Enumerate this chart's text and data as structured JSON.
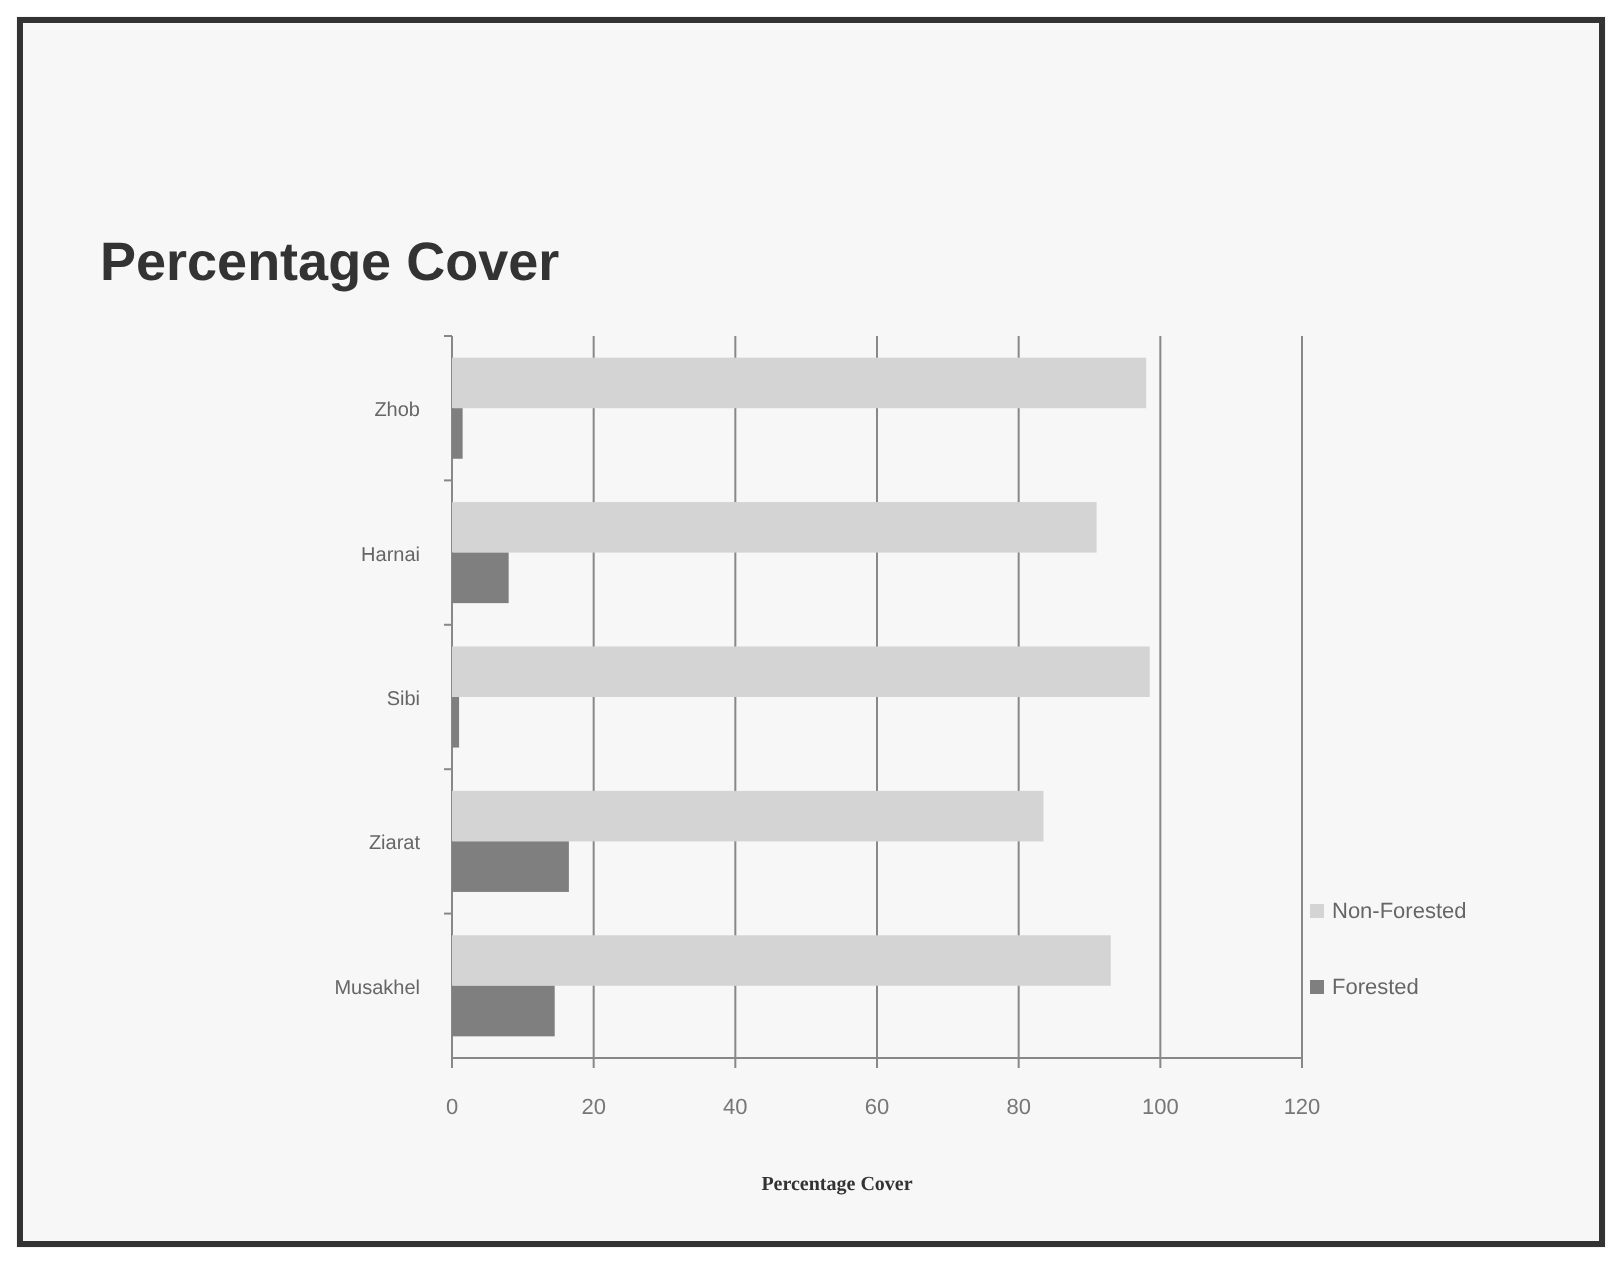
{
  "chart_data": {
    "type": "bar",
    "orientation": "horizontal",
    "title": "Percentage Cover",
    "xlabel": "Percentage Cover",
    "categories": [
      "Zhob",
      "Harnai",
      "Sibi",
      "Ziarat",
      "Musakhel"
    ],
    "series": [
      {
        "name": "Non-Forested",
        "color": "#d4d4d4",
        "values": [
          98,
          91,
          98.5,
          83.5,
          93
        ]
      },
      {
        "name": "Forested",
        "color": "#7f7f7f",
        "values": [
          1.5,
          8,
          1,
          16.5,
          14.5
        ]
      }
    ],
    "xlim": [
      0,
      120
    ],
    "xticks": [
      0,
      20,
      40,
      60,
      80,
      100,
      120
    ],
    "grid": "x",
    "legend": "right"
  }
}
